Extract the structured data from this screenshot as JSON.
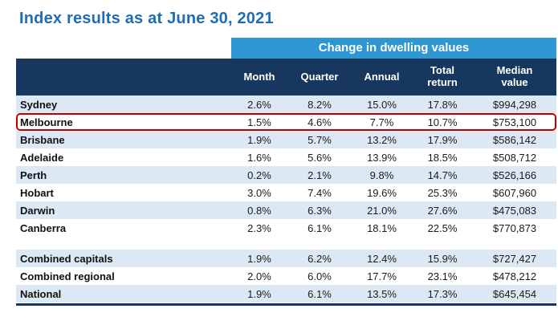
{
  "chart_data": {
    "type": "table",
    "title": "Index results as at June 30, 2021",
    "band_label": "Change in dwelling values",
    "columns": [
      "Month",
      "Quarter",
      "Annual",
      "Total\nreturn",
      "Median\nvalue"
    ],
    "rows": [
      {
        "label": "Sydney",
        "month": "2.6%",
        "quarter": "8.2%",
        "annual": "15.0%",
        "total_return": "17.8%",
        "median_value": "$994,298",
        "shaded": true,
        "highlighted": false
      },
      {
        "label": "Melbourne",
        "month": "1.5%",
        "quarter": "4.6%",
        "annual": "7.7%",
        "total_return": "10.7%",
        "median_value": "$753,100",
        "shaded": false,
        "highlighted": true
      },
      {
        "label": "Brisbane",
        "month": "1.9%",
        "quarter": "5.7%",
        "annual": "13.2%",
        "total_return": "17.9%",
        "median_value": "$586,142",
        "shaded": true,
        "highlighted": false
      },
      {
        "label": "Adelaide",
        "month": "1.6%",
        "quarter": "5.6%",
        "annual": "13.9%",
        "total_return": "18.5%",
        "median_value": "$508,712",
        "shaded": false,
        "highlighted": false
      },
      {
        "label": "Perth",
        "month": "0.2%",
        "quarter": "2.1%",
        "annual": "9.8%",
        "total_return": "14.7%",
        "median_value": "$526,166",
        "shaded": true,
        "highlighted": false
      },
      {
        "label": "Hobart",
        "month": "3.0%",
        "quarter": "7.4%",
        "annual": "19.6%",
        "total_return": "25.3%",
        "median_value": "$607,960",
        "shaded": false,
        "highlighted": false
      },
      {
        "label": "Darwin",
        "month": "0.8%",
        "quarter": "6.3%",
        "annual": "21.0%",
        "total_return": "27.6%",
        "median_value": "$475,083",
        "shaded": true,
        "highlighted": false
      },
      {
        "label": "Canberra",
        "month": "2.3%",
        "quarter": "6.1%",
        "annual": "18.1%",
        "total_return": "22.5%",
        "median_value": "$770,873",
        "shaded": false,
        "highlighted": false
      },
      {
        "type": "spacer"
      },
      {
        "label": "Combined capitals",
        "month": "1.9%",
        "quarter": "6.2%",
        "annual": "12.4%",
        "total_return": "15.9%",
        "median_value": "$727,427",
        "shaded": true,
        "highlighted": false
      },
      {
        "label": "Combined regional",
        "month": "2.0%",
        "quarter": "6.0%",
        "annual": "17.7%",
        "total_return": "23.1%",
        "median_value": "$478,212",
        "shaded": false,
        "highlighted": false
      },
      {
        "label": "National",
        "month": "1.9%",
        "quarter": "6.1%",
        "annual": "13.5%",
        "total_return": "17.3%",
        "median_value": "$645,454",
        "shaded": true,
        "highlighted": false
      }
    ]
  },
  "colors": {
    "title_blue": "#1F6DB6",
    "band_blue": "#2E96D0",
    "header_navy": "#17375E",
    "row_shade": "#DCE9F5",
    "highlight_border": "#C00000"
  }
}
